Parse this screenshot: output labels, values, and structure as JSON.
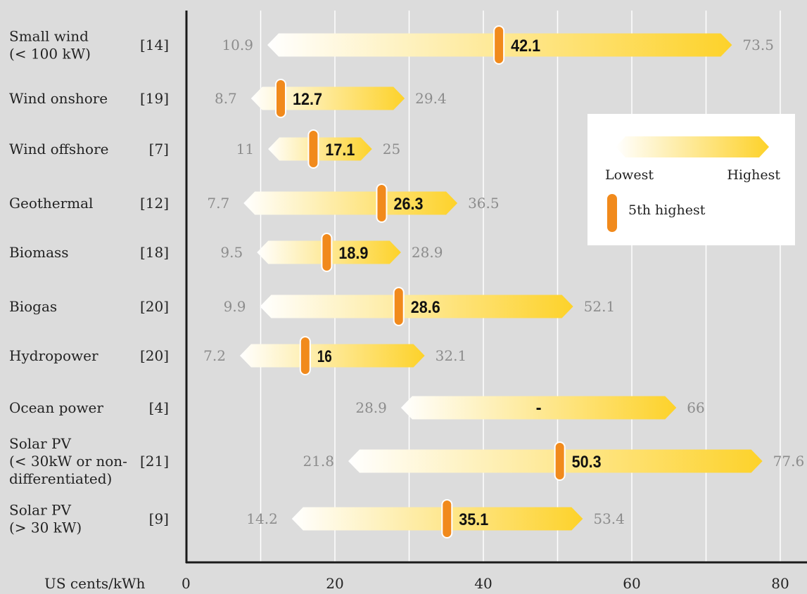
{
  "chart_data": {
    "type": "bar",
    "subtype": "range-with-marker",
    "xlabel": "US cents/kWh",
    "xlim": [
      0,
      80
    ],
    "xticks": [
      0,
      20,
      40,
      60,
      80
    ],
    "grid": true,
    "legend_position": "right",
    "legend": {
      "low_label": "Lowest",
      "high_label": "Highest",
      "marker_label": "5th highest"
    },
    "colors": {
      "background": "#dcdcdc",
      "grid": "#ffffff",
      "bar_low": "#ffffff",
      "bar_high": "#fdd22a",
      "marker": "#f18a1c",
      "axis": "#1a1a1a",
      "min_max_text": "#8c8c8c",
      "label_text": "#222222"
    },
    "categories": [
      {
        "label": "Small wind\n(< 100 kW)",
        "count": "[14]",
        "min": 10.9,
        "max": 73.5,
        "marker": 42.1,
        "marker_label": "42.1"
      },
      {
        "label": "Wind onshore",
        "count": "[19]",
        "min": 8.7,
        "max": 29.4,
        "marker": 12.7,
        "marker_label": "12.7"
      },
      {
        "label": "Wind offshore",
        "count": "[7]",
        "min": 11,
        "max": 25,
        "marker": 17.1,
        "marker_label": "17.1"
      },
      {
        "label": "Geothermal",
        "count": "[12]",
        "min": 7.7,
        "max": 36.5,
        "marker": 26.3,
        "marker_label": "26.3"
      },
      {
        "label": "Biomass",
        "count": "[18]",
        "min": 9.5,
        "max": 28.9,
        "marker": 18.9,
        "marker_label": "18.9"
      },
      {
        "label": "Biogas",
        "count": "[20]",
        "min": 9.9,
        "max": 52.1,
        "marker": 28.6,
        "marker_label": "28.6"
      },
      {
        "label": "Hydropower",
        "count": "[20]",
        "min": 7.2,
        "max": 32.1,
        "marker": 16,
        "marker_label": "16"
      },
      {
        "label": "Ocean power",
        "count": "[4]",
        "min": 28.9,
        "max": 66,
        "marker": null,
        "marker_label": "-"
      },
      {
        "label": "Solar PV\n(< 30kW or non-\ndifferentiated)",
        "count": "[21]",
        "min": 21.8,
        "max": 77.6,
        "marker": 50.3,
        "marker_label": "50.3"
      },
      {
        "label": "Solar PV\n(> 30 kW)",
        "count": "[9]",
        "min": 14.2,
        "max": 53.4,
        "marker": 35.1,
        "marker_label": "35.1"
      }
    ]
  }
}
